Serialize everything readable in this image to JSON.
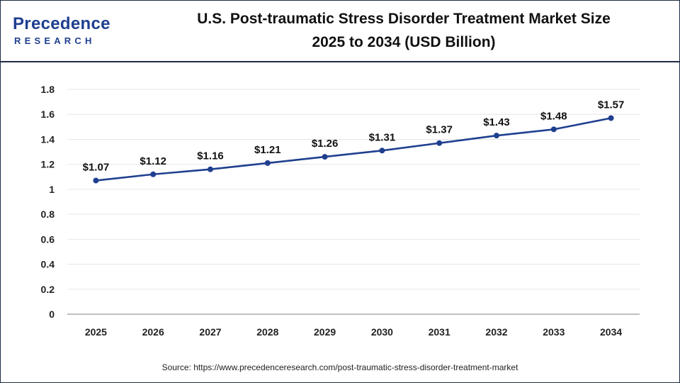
{
  "brand": {
    "name": "Precedence",
    "sub": "RESEARCH"
  },
  "title": {
    "line1": "U.S. Post-traumatic Stress Disorder Treatment Market Size",
    "line2": "2025 to 2034 (USD Billion)"
  },
  "source": "Source: https://www.precedenceresearch.com/post-traumatic-stress-disorder-treatment-market",
  "colors": {
    "line": "#1f3f8f",
    "grid": "#e6e6e6",
    "axis": "#999999"
  },
  "chart_data": {
    "type": "line",
    "title": "U.S. Post-traumatic Stress Disorder Treatment Market Size 2025 to 2034 (USD Billion)",
    "xlabel": "",
    "ylabel": "",
    "categories": [
      "2025",
      "2026",
      "2027",
      "2028",
      "2029",
      "2030",
      "2031",
      "2032",
      "2033",
      "2034"
    ],
    "values": [
      1.07,
      1.12,
      1.16,
      1.21,
      1.26,
      1.31,
      1.37,
      1.43,
      1.48,
      1.57
    ],
    "labels": [
      "$1.07",
      "$1.12",
      "$1.16",
      "$1.21",
      "$1.26",
      "$1.31",
      "$1.37",
      "$1.43",
      "$1.48",
      "$1.57"
    ],
    "ylim": [
      0,
      1.8
    ],
    "yticks": [
      "0",
      "0.2",
      "0.4",
      "0.6",
      "0.8",
      "1",
      "1.2",
      "1.4",
      "1.6",
      "1.8"
    ],
    "grid": true
  }
}
